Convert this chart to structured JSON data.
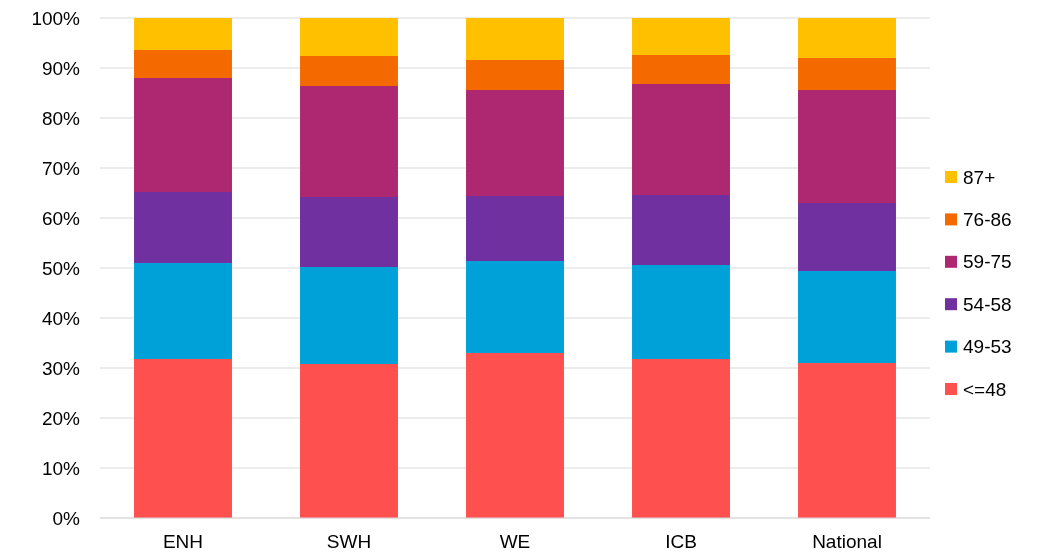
{
  "chart_data": {
    "type": "bar",
    "stacked": true,
    "categories": [
      "ENH",
      "SWH",
      "WE",
      "ICB",
      "National"
    ],
    "series": [
      {
        "name": "<=48",
        "color": "#ff5050",
        "values": [
          31.8,
          30.8,
          33.0,
          31.8,
          31.0
        ]
      },
      {
        "name": "49-53",
        "color": "#00a0d8",
        "values": [
          19.2,
          19.4,
          18.4,
          18.8,
          18.4
        ]
      },
      {
        "name": "54-58",
        "color": "#7030a0",
        "values": [
          14.2,
          14.0,
          13.0,
          14.0,
          13.6
        ]
      },
      {
        "name": "59-75",
        "color": "#ad2870",
        "values": [
          22.8,
          22.2,
          21.2,
          22.2,
          22.6
        ]
      },
      {
        "name": "76-86",
        "color": "#f56a00",
        "values": [
          5.6,
          6.0,
          6.0,
          5.8,
          6.4
        ]
      },
      {
        "name": "87+",
        "color": "#ffc000",
        "values": [
          6.4,
          7.6,
          8.4,
          7.4,
          8.0
        ]
      }
    ],
    "ylim": [
      0,
      100
    ],
    "yticks": [
      {
        "value": 0,
        "label": "0%"
      },
      {
        "value": 10,
        "label": "10%"
      },
      {
        "value": 20,
        "label": "20%"
      },
      {
        "value": 30,
        "label": "30%"
      },
      {
        "value": 40,
        "label": "40%"
      },
      {
        "value": 50,
        "label": "50%"
      },
      {
        "value": 60,
        "label": "60%"
      },
      {
        "value": 70,
        "label": "70%"
      },
      {
        "value": 80,
        "label": "80%"
      },
      {
        "value": 90,
        "label": "90%"
      },
      {
        "value": 100,
        "label": "100%"
      }
    ],
    "grid": "y",
    "legend": "right"
  }
}
